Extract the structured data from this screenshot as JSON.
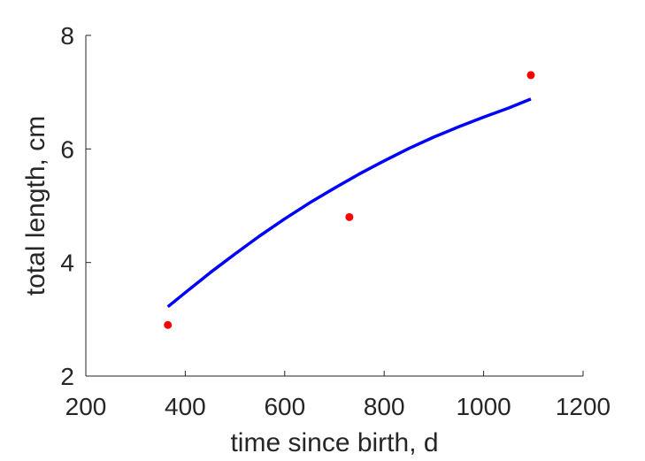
{
  "chart_data": {
    "type": "scatter",
    "title": "",
    "xlabel": "time since birth, d",
    "ylabel": "total length, cm",
    "xlim": [
      200,
      1200
    ],
    "ylim": [
      2,
      8
    ],
    "xticks": [
      200,
      400,
      600,
      800,
      1000,
      1200
    ],
    "yticks": [
      2,
      4,
      6,
      8
    ],
    "grid": false,
    "series": [
      {
        "kind": "scatter",
        "color": "#ff0000",
        "x": [
          365,
          730,
          1095
        ],
        "y": [
          2.9,
          4.8,
          7.3
        ]
      },
      {
        "kind": "line",
        "color": "#0000ff",
        "x": [
          365,
          400,
          450,
          500,
          550,
          600,
          650,
          700,
          730,
          750,
          800,
          850,
          900,
          950,
          1000,
          1050,
          1095
        ],
        "y": [
          3.22,
          3.47,
          3.82,
          4.15,
          4.47,
          4.77,
          5.05,
          5.31,
          5.46,
          5.56,
          5.79,
          6.01,
          6.21,
          6.39,
          6.56,
          6.72,
          6.88
        ]
      }
    ]
  }
}
